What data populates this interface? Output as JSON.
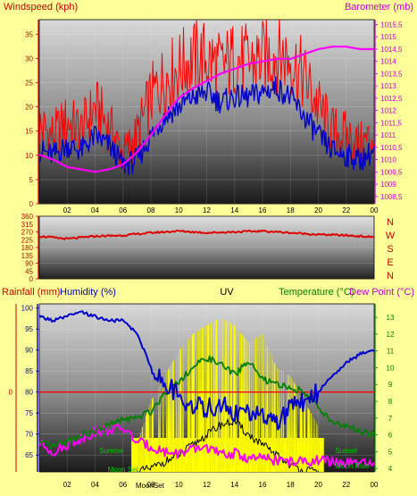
{
  "colors": {
    "background": "#ffff99",
    "wind_speed": "#ff0000",
    "wind_avg": "#0000cc",
    "barometer": "#ff00ff",
    "wind_dir": "#dd0000",
    "humidity": "#0000cc",
    "uv": "#ffff00",
    "temperature": "#008000",
    "dew_point": "#ff00ff",
    "rainfall": "#ff0000",
    "axis_red": "#cc0000",
    "axis_magenta": "#cc00cc",
    "axis_blue": "#0000cc",
    "axis_green": "#008000"
  },
  "chart_data": [
    {
      "type": "line",
      "title": "",
      "left_label": "Windspeed (kph)",
      "right_label": "Barometer (mb)",
      "x_ticks": [
        "02",
        "04",
        "06",
        "08",
        "10",
        "12",
        "14",
        "16",
        "18",
        "20",
        "22",
        "00"
      ],
      "x_range": [
        0,
        24
      ],
      "ylim": [
        0,
        38
      ],
      "y_ticks": [
        "0",
        "5",
        "10",
        "15",
        "20",
        "25",
        "30",
        "35"
      ],
      "y2lim": [
        1008.2,
        1015.7
      ],
      "y2_ticks": [
        "1008,5",
        "1009",
        "1009,5",
        "1010",
        "1010,5",
        "1011",
        "1011,5",
        "1012",
        "1012,5",
        "1013",
        "1013,5",
        "1014",
        "1014,5",
        "1015",
        "1015,5"
      ],
      "series": [
        {
          "name": "Windspeed (kph)",
          "axis": "left",
          "x": [
            0,
            1,
            2,
            3,
            4,
            5,
            6,
            7,
            8,
            9,
            10,
            11,
            12,
            13,
            14,
            15,
            16,
            17,
            18,
            19,
            20,
            21,
            22,
            23,
            24
          ],
          "values": [
            16,
            14,
            17,
            15,
            20,
            16,
            10,
            14,
            22,
            26,
            28,
            30,
            30,
            28,
            30,
            29,
            30,
            31,
            30,
            26,
            20,
            15,
            14,
            12,
            14
          ]
        },
        {
          "name": "Average windspeed",
          "axis": "left",
          "x": [
            0,
            1,
            2,
            3,
            4,
            5,
            6,
            7,
            8,
            9,
            10,
            11,
            12,
            13,
            14,
            15,
            16,
            17,
            18,
            19,
            20,
            21,
            22,
            23,
            24
          ],
          "values": [
            11,
            10,
            12,
            11,
            14,
            12,
            8,
            9,
            14,
            18,
            20,
            22,
            23,
            21,
            22,
            22,
            23,
            24,
            22,
            18,
            14,
            11,
            10,
            9,
            11
          ]
        },
        {
          "name": "Barometer (mb)",
          "axis": "right",
          "x": [
            0,
            1,
            2,
            3,
            4,
            5,
            6,
            7,
            8,
            9,
            10,
            11,
            12,
            13,
            14,
            15,
            16,
            17,
            18,
            19,
            20,
            21,
            22,
            23,
            24
          ],
          "values": [
            1010.2,
            1010.0,
            1009.7,
            1009.6,
            1009.5,
            1009.6,
            1009.8,
            1010.3,
            1011.0,
            1011.8,
            1012.5,
            1012.9,
            1013.2,
            1013.5,
            1013.7,
            1013.9,
            1014.0,
            1014.1,
            1014.1,
            1014.3,
            1014.5,
            1014.6,
            1014.6,
            1014.5,
            1014.5
          ]
        }
      ]
    },
    {
      "type": "line",
      "title": "",
      "x_range": [
        0,
        24
      ],
      "ylim": [
        0,
        360
      ],
      "y_ticks": [
        "0",
        "90",
        "180",
        "270",
        "360"
      ],
      "y_ticks_extra": [
        "45",
        "135",
        "225",
        "315"
      ],
      "direction_labels": [
        "N",
        "W",
        "S",
        "E",
        "N"
      ],
      "series": [
        {
          "name": "Wind direction",
          "axis": "left",
          "x": [
            0,
            2,
            4,
            6,
            8,
            10,
            12,
            14,
            16,
            18,
            20,
            22,
            24
          ],
          "values": [
            245,
            230,
            245,
            250,
            265,
            275,
            265,
            270,
            275,
            265,
            255,
            250,
            240
          ]
        }
      ]
    },
    {
      "type": "line",
      "title": "",
      "left_labels": [
        "Rainfall (mm)",
        "Humidity (%)"
      ],
      "center_label": "UV",
      "right_labels": [
        "Temperature (°C)",
        "Dew Point (°C)"
      ],
      "x_ticks": [
        "02",
        "04",
        "06",
        "08",
        "10",
        "12",
        "14",
        "16",
        "18",
        "20",
        "22",
        "00"
      ],
      "x_range": [
        0,
        24
      ],
      "rain_tick": "0",
      "ylim": [
        61,
        101
      ],
      "y_ticks": [
        "65",
        "70",
        "75",
        "80",
        "85",
        "90",
        "95",
        "100"
      ],
      "y2lim": [
        3.8,
        13.8
      ],
      "y2_ticks": [
        "4",
        "5",
        "6",
        "7",
        "8",
        "9",
        "10",
        "11",
        "12",
        "13"
      ],
      "annotations": [
        "Sunrise",
        "Sunset",
        "Moon Set",
        "Moon Rise",
        "MoonSet"
      ],
      "series": [
        {
          "name": "Humidity (%)",
          "axis": "left",
          "x": [
            0,
            1,
            2,
            3,
            4,
            5,
            6,
            7,
            8,
            9,
            10,
            11,
            12,
            13,
            14,
            15,
            16,
            17,
            18,
            19,
            20,
            21,
            22,
            23,
            24
          ],
          "values": [
            98,
            97,
            98,
            99,
            98,
            97,
            97,
            94,
            86,
            82,
            79,
            77,
            76,
            77,
            75,
            75,
            74,
            73,
            76,
            78,
            80,
            84,
            87,
            89,
            90
          ]
        },
        {
          "name": "Temperature (°C)",
          "axis": "right",
          "x": [
            0,
            1,
            2,
            3,
            4,
            5,
            6,
            7,
            8,
            9,
            10,
            11,
            12,
            13,
            14,
            15,
            16,
            17,
            18,
            19,
            20,
            21,
            22,
            23,
            24
          ],
          "values": [
            5.5,
            5.3,
            5.6,
            6.0,
            6.2,
            6.6,
            6.9,
            7.0,
            7.4,
            8.5,
            9.2,
            10.0,
            10.6,
            10.2,
            9.6,
            10.4,
            9.3,
            9.0,
            8.8,
            8.6,
            7.6,
            6.8,
            6.5,
            6.2,
            6.0
          ]
        },
        {
          "name": "Dew Point (°C)",
          "axis": "right",
          "x": [
            0,
            1,
            2,
            3,
            4,
            5,
            6,
            7,
            8,
            9,
            10,
            11,
            12,
            13,
            14,
            15,
            16,
            17,
            18,
            19,
            20,
            21,
            22,
            23,
            24
          ],
          "values": [
            5.5,
            5.0,
            5.4,
            5.8,
            6.2,
            6.3,
            6.4,
            5.6,
            5.3,
            5.0,
            4.9,
            5.1,
            5.3,
            4.8,
            4.9,
            4.6,
            4.6,
            4.5,
            4.4,
            4.4,
            4.5,
            4.4,
            4.3,
            4.3,
            4.2
          ]
        },
        {
          "name": "UV",
          "axis": "right",
          "x": [
            7,
            8,
            9,
            10,
            11,
            12,
            13,
            14,
            15,
            16,
            17,
            18,
            19,
            20,
            20.4
          ],
          "values": [
            5.5,
            8.0,
            9.5,
            11.0,
            12.0,
            12.5,
            13.0,
            12.5,
            11.5,
            12.0,
            10.0,
            9.5,
            8.0,
            6.5,
            0
          ]
        },
        {
          "name": "Solar",
          "axis": "right",
          "x": [
            7,
            8,
            9,
            10,
            11,
            12,
            13,
            14,
            15,
            16,
            17,
            18,
            19,
            20
          ],
          "values": [
            3.8,
            4.0,
            4.4,
            4.8,
            5.4,
            6.0,
            6.6,
            6.8,
            6.0,
            5.4,
            4.8,
            4.2,
            3.9,
            3.8
          ]
        }
      ]
    }
  ]
}
